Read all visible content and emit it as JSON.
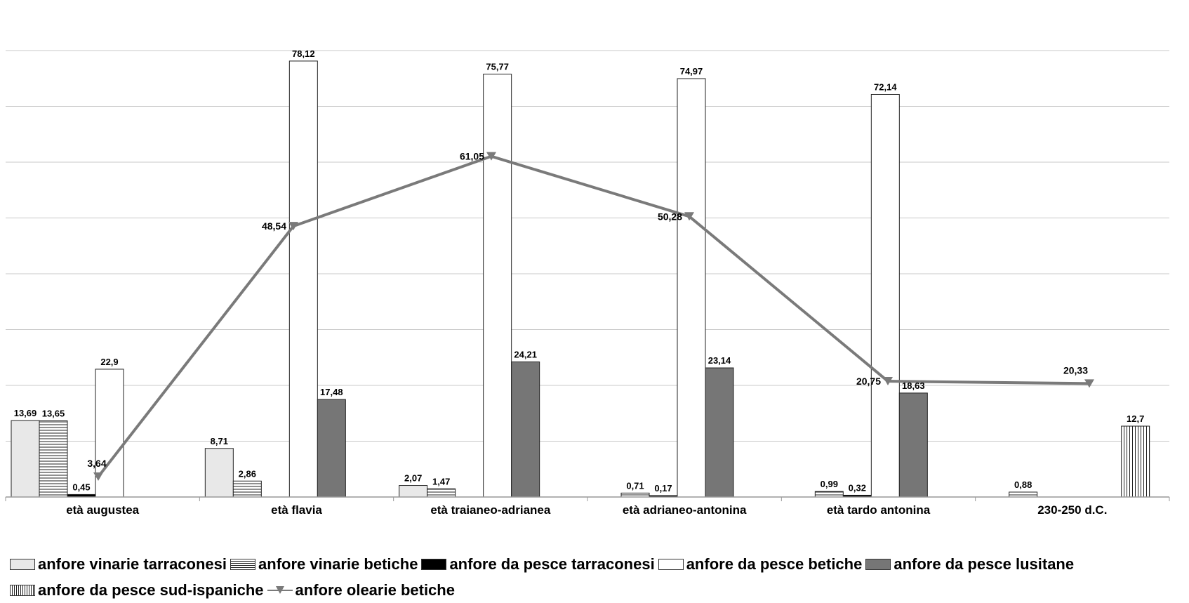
{
  "chart_data": {
    "type": "bar",
    "title": "",
    "xlabel": "",
    "ylabel": "",
    "ylim": [
      0,
      80
    ],
    "grid": true,
    "legend_placement": "bottom",
    "categories": [
      "età augustea",
      "età flavia",
      "età traianeo-adrianea",
      "età adrianeo-antonina",
      "età tardo antonina",
      "230-250 d.C."
    ],
    "series": [
      {
        "name": "anfore vinarie tarraconesi",
        "kind": "bar",
        "fill": "#e8e8e8",
        "pattern": "none",
        "values": [
          13.69,
          8.71,
          2.07,
          null,
          null,
          null
        ],
        "labels": [
          "13,69",
          "8,71",
          "2,07",
          "",
          "",
          ""
        ]
      },
      {
        "name": "anfore vinarie betiche",
        "kind": "bar",
        "fill": "#ffffff",
        "pattern": "horizontal-lines",
        "values": [
          13.65,
          2.86,
          1.47,
          0.71,
          0.99,
          0.88
        ],
        "labels": [
          "13,65",
          "2,86",
          "1,47",
          "0,71",
          "0,99",
          "0,88"
        ]
      },
      {
        "name": "anfore da pesce tarraconesi",
        "kind": "bar",
        "fill": "#000000",
        "pattern": "none",
        "values": [
          0.45,
          null,
          null,
          0.17,
          0.32,
          null
        ],
        "labels": [
          "0,45",
          "",
          "",
          "0,17",
          "0,32",
          ""
        ]
      },
      {
        "name": "anfore da pesce betiche",
        "kind": "bar",
        "fill": "#ffffff",
        "pattern": "none",
        "values": [
          22.9,
          78.12,
          75.77,
          74.97,
          72.14,
          null
        ],
        "labels": [
          "22,9",
          "78,12",
          "75,77",
          "74,97",
          "72,14",
          ""
        ]
      },
      {
        "name": "anfore da pesce lusitane",
        "kind": "bar",
        "fill": "#767676",
        "pattern": "none",
        "values": [
          null,
          17.48,
          24.21,
          23.14,
          18.63,
          null
        ],
        "labels": [
          "",
          "17,48",
          "24,21",
          "23,14",
          "18,63",
          ""
        ]
      },
      {
        "name": "anfore da pesce sud-ispaniche",
        "kind": "bar",
        "fill": "#ffffff",
        "pattern": "vertical-lines",
        "values": [
          null,
          null,
          null,
          null,
          null,
          12.7
        ],
        "labels": [
          "",
          "",
          "",
          "",
          "",
          "12,7"
        ]
      },
      {
        "name": "anfore olearie betiche",
        "kind": "line",
        "color": "#7a7a7a",
        "marker": "triangle-down",
        "values": [
          3.64,
          48.54,
          61.05,
          50.28,
          20.75,
          20.33
        ],
        "labels": [
          "3,64",
          "48,54",
          "61,05",
          "50,28",
          "20,75",
          "20,33"
        ]
      }
    ]
  },
  "legend": {
    "row1": [
      {
        "label": "anfore vinarie tarraconesi",
        "series": 0
      },
      {
        "label": "anfore vinarie betiche",
        "series": 1
      },
      {
        "label": "anfore da pesce tarraconesi",
        "series": 2
      },
      {
        "label": "anfore da pesce betiche",
        "series": 3
      },
      {
        "label": "anfore da pesce lusitane",
        "series": 4
      }
    ],
    "row2": [
      {
        "label": "anfore da pesce sud-ispaniche",
        "series": 5
      },
      {
        "label": "anfore olearie betiche",
        "series": 6
      }
    ]
  }
}
